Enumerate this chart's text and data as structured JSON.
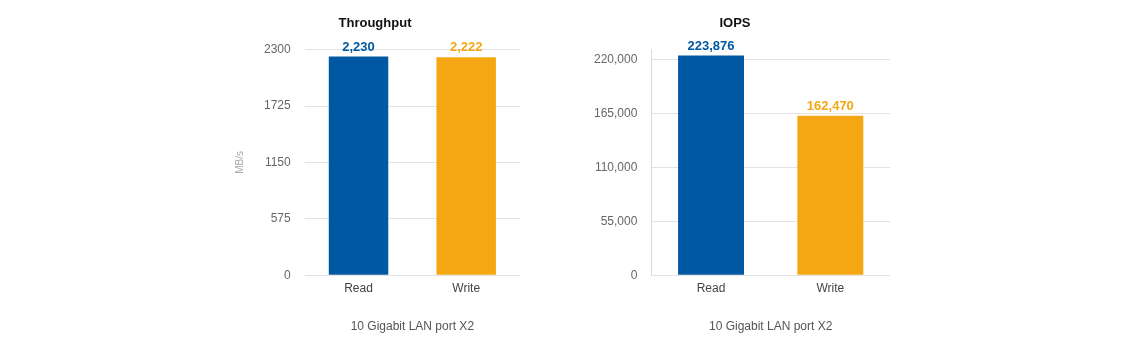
{
  "chart_data": [
    {
      "type": "bar",
      "title": "Throughput",
      "ylabel": "MB/s",
      "xlabel": "10 Gigabit LAN port X2",
      "categories": [
        "Read",
        "Write"
      ],
      "values": [
        2230,
        2222
      ],
      "colors": [
        "#0058a3",
        "#f4a712"
      ],
      "value_labels": [
        "2,230",
        "2,222"
      ],
      "ylim": [
        0,
        2300
      ],
      "yticks": [
        0,
        575,
        1150,
        1725,
        2300
      ],
      "grid": "y",
      "legend": false
    },
    {
      "type": "bar",
      "title": "IOPS",
      "xlabel": "10 Gigabit LAN port X2",
      "categories": [
        "Read",
        "Write"
      ],
      "values": [
        223876,
        162470
      ],
      "colors": [
        "#0058a3",
        "#f4a712"
      ],
      "value_labels": [
        "223,876",
        "162,470"
      ],
      "ylim": [
        0,
        230000
      ],
      "yticks": [
        0,
        {
          "value": 55000,
          "label": "55,000"
        },
        {
          "value": 110000,
          "label": "110,000"
        },
        {
          "value": 165000,
          "label": "165,000"
        },
        {
          "value": 220000,
          "label": "220,000"
        }
      ],
      "grid": "y",
      "legend": false
    }
  ]
}
